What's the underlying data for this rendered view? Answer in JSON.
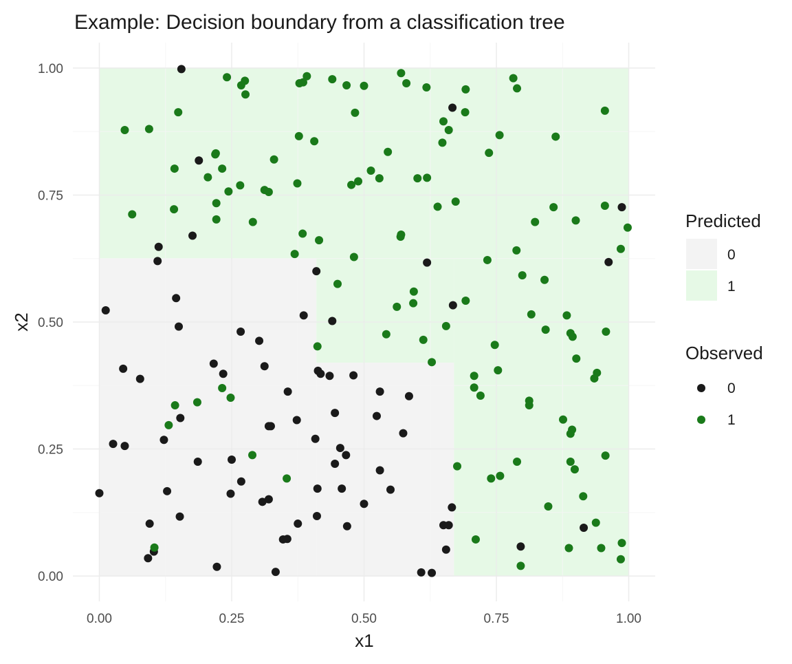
{
  "chart_data": {
    "type": "scatter",
    "title": "Example: Decision boundary from a classification tree",
    "xlabel": "x1",
    "ylabel": "x2",
    "xlim": [
      -0.05,
      1.05
    ],
    "ylim": [
      -0.05,
      1.05
    ],
    "x_ticks": [
      0,
      0.25,
      0.5,
      0.75,
      1
    ],
    "x_tick_labels": [
      "0.00",
      "0.25",
      "0.50",
      "0.75",
      "1.00"
    ],
    "y_ticks": [
      0,
      0.25,
      0.5,
      0.75,
      1
    ],
    "y_tick_labels": [
      "0.00",
      "0.25",
      "0.50",
      "0.75",
      "1.00"
    ],
    "grid": true,
    "legend_position": "right",
    "colors": {
      "predicted_0": "#f3f3f3",
      "predicted_1": "#e6f9e6",
      "observed_0": "#1a1a1a",
      "observed_1": "#1a7a1a",
      "grid_major": "#ebebeb",
      "grid_minor": "#f5f5f5",
      "text": "#1a1a1a",
      "tick_text": "#4d4d4d"
    },
    "legends": {
      "predicted": {
        "title": "Predicted",
        "labels": [
          "0",
          "1"
        ]
      },
      "observed": {
        "title": "Observed",
        "labels": [
          "0",
          "1"
        ]
      }
    },
    "regions": [
      {
        "predicted": "1",
        "x": [
          0,
          1
        ],
        "y": [
          0.625,
          1
        ]
      },
      {
        "predicted": "0",
        "x": [
          0,
          0.41
        ],
        "y": [
          0,
          0.625
        ]
      },
      {
        "predicted": "0",
        "x": [
          0.41,
          0.67
        ],
        "y": [
          0,
          0.42
        ]
      },
      {
        "predicted": "1",
        "x": [
          0.41,
          0.67
        ],
        "y": [
          0.42,
          0.625
        ]
      },
      {
        "predicted": "1",
        "x": [
          0.67,
          1
        ],
        "y": [
          0,
          0.625
        ]
      }
    ],
    "series": [
      {
        "name": "0",
        "points": [
          [
            0.155,
            0.998
          ],
          [
            0.667,
            0.922
          ],
          [
            0.188,
            0.818
          ],
          [
            0.176,
            0.67
          ],
          [
            0.112,
            0.648
          ],
          [
            0.11,
            0.62
          ],
          [
            0.987,
            0.726
          ],
          [
            0.962,
            0.618
          ],
          [
            0.619,
            0.617
          ],
          [
            0.41,
            0.6
          ],
          [
            0.145,
            0.547
          ],
          [
            0.012,
            0.523
          ],
          [
            0.668,
            0.533
          ],
          [
            0.386,
            0.513
          ],
          [
            0.44,
            0.502
          ],
          [
            0.15,
            0.491
          ],
          [
            0.267,
            0.481
          ],
          [
            0.302,
            0.463
          ],
          [
            0.216,
            0.418
          ],
          [
            0.312,
            0.413
          ],
          [
            0.045,
            0.408
          ],
          [
            0.413,
            0.404
          ],
          [
            0.418,
            0.398
          ],
          [
            0.234,
            0.398
          ],
          [
            0.435,
            0.394
          ],
          [
            0.48,
            0.395
          ],
          [
            0.077,
            0.388
          ],
          [
            0.53,
            0.363
          ],
          [
            0.356,
            0.363
          ],
          [
            0.585,
            0.354
          ],
          [
            0.445,
            0.321
          ],
          [
            0.524,
            0.315
          ],
          [
            0.153,
            0.311
          ],
          [
            0.373,
            0.307
          ],
          [
            0.32,
            0.295
          ],
          [
            0.324,
            0.295
          ],
          [
            0.574,
            0.281
          ],
          [
            0.122,
            0.268
          ],
          [
            0.408,
            0.27
          ],
          [
            0.026,
            0.26
          ],
          [
            0.048,
            0.256
          ],
          [
            0.455,
            0.252
          ],
          [
            0.466,
            0.238
          ],
          [
            0.25,
            0.229
          ],
          [
            0.186,
            0.225
          ],
          [
            0.445,
            0.221
          ],
          [
            0.53,
            0.208
          ],
          [
            0.268,
            0.186
          ],
          [
            0.412,
            0.172
          ],
          [
            0.458,
            0.172
          ],
          [
            0.55,
            0.17
          ],
          [
            0.128,
            0.167
          ],
          [
            0.0,
            0.163
          ],
          [
            0.248,
            0.162
          ],
          [
            0.32,
            0.151
          ],
          [
            0.308,
            0.146
          ],
          [
            0.5,
            0.142
          ],
          [
            0.666,
            0.135
          ],
          [
            0.152,
            0.117
          ],
          [
            0.411,
            0.118
          ],
          [
            0.375,
            0.103
          ],
          [
            0.095,
            0.103
          ],
          [
            0.468,
            0.098
          ],
          [
            0.65,
            0.1
          ],
          [
            0.66,
            0.1
          ],
          [
            0.915,
            0.095
          ],
          [
            0.347,
            0.072
          ],
          [
            0.355,
            0.073
          ],
          [
            0.796,
            0.058
          ],
          [
            0.655,
            0.052
          ],
          [
            0.103,
            0.048
          ],
          [
            0.092,
            0.035
          ],
          [
            0.222,
            0.018
          ],
          [
            0.333,
            0.008
          ],
          [
            0.608,
            0.007
          ],
          [
            0.628,
            0.006
          ]
        ]
      },
      {
        "name": "1",
        "points": [
          [
            0.57,
            0.99
          ],
          [
            0.241,
            0.982
          ],
          [
            0.392,
            0.984
          ],
          [
            0.44,
            0.978
          ],
          [
            0.275,
            0.975
          ],
          [
            0.378,
            0.97
          ],
          [
            0.58,
            0.97
          ],
          [
            0.385,
            0.972
          ],
          [
            0.268,
            0.966
          ],
          [
            0.467,
            0.966
          ],
          [
            0.5,
            0.965
          ],
          [
            0.618,
            0.962
          ],
          [
            0.692,
            0.958
          ],
          [
            0.789,
            0.96
          ],
          [
            0.782,
            0.98
          ],
          [
            0.276,
            0.948
          ],
          [
            0.149,
            0.913
          ],
          [
            0.483,
            0.912
          ],
          [
            0.691,
            0.913
          ],
          [
            0.955,
            0.916
          ],
          [
            0.65,
            0.895
          ],
          [
            0.048,
            0.878
          ],
          [
            0.094,
            0.88
          ],
          [
            0.66,
            0.878
          ],
          [
            0.377,
            0.866
          ],
          [
            0.406,
            0.856
          ],
          [
            0.648,
            0.853
          ],
          [
            0.756,
            0.868
          ],
          [
            0.862,
            0.865
          ],
          [
            0.545,
            0.835
          ],
          [
            0.219,
            0.83
          ],
          [
            0.22,
            0.832
          ],
          [
            0.736,
            0.833
          ],
          [
            0.33,
            0.82
          ],
          [
            0.142,
            0.802
          ],
          [
            0.232,
            0.802
          ],
          [
            0.513,
            0.798
          ],
          [
            0.205,
            0.785
          ],
          [
            0.529,
            0.783
          ],
          [
            0.601,
            0.783
          ],
          [
            0.619,
            0.784
          ],
          [
            0.489,
            0.777
          ],
          [
            0.374,
            0.773
          ],
          [
            0.266,
            0.769
          ],
          [
            0.476,
            0.77
          ],
          [
            0.312,
            0.76
          ],
          [
            0.32,
            0.756
          ],
          [
            0.244,
            0.757
          ],
          [
            0.221,
            0.734
          ],
          [
            0.673,
            0.737
          ],
          [
            0.639,
            0.727
          ],
          [
            0.858,
            0.726
          ],
          [
            0.955,
            0.729
          ],
          [
            0.141,
            0.722
          ],
          [
            0.062,
            0.712
          ],
          [
            0.221,
            0.702
          ],
          [
            0.29,
            0.697
          ],
          [
            0.823,
            0.697
          ],
          [
            0.9,
            0.7
          ],
          [
            0.998,
            0.686
          ],
          [
            0.384,
            0.674
          ],
          [
            0.57,
            0.672
          ],
          [
            0.569,
            0.668
          ],
          [
            0.415,
            0.661
          ],
          [
            0.985,
            0.644
          ],
          [
            0.788,
            0.641
          ],
          [
            0.369,
            0.634
          ],
          [
            0.481,
            0.628
          ],
          [
            0.733,
            0.622
          ],
          [
            0.799,
            0.592
          ],
          [
            0.841,
            0.583
          ],
          [
            0.45,
            0.575
          ],
          [
            0.594,
            0.56
          ],
          [
            0.692,
            0.542
          ],
          [
            0.593,
            0.537
          ],
          [
            0.562,
            0.53
          ],
          [
            0.816,
            0.515
          ],
          [
            0.883,
            0.513
          ],
          [
            0.655,
            0.492
          ],
          [
            0.843,
            0.485
          ],
          [
            0.957,
            0.481
          ],
          [
            0.89,
            0.478
          ],
          [
            0.894,
            0.471
          ],
          [
            0.542,
            0.476
          ],
          [
            0.612,
            0.465
          ],
          [
            0.747,
            0.455
          ],
          [
            0.412,
            0.452
          ],
          [
            0.901,
            0.428
          ],
          [
            0.628,
            0.421
          ],
          [
            0.753,
            0.405
          ],
          [
            0.94,
            0.4
          ],
          [
            0.708,
            0.394
          ],
          [
            0.935,
            0.389
          ],
          [
            0.708,
            0.371
          ],
          [
            0.232,
            0.37
          ],
          [
            0.72,
            0.355
          ],
          [
            0.248,
            0.351
          ],
          [
            0.812,
            0.345
          ],
          [
            0.185,
            0.342
          ],
          [
            0.143,
            0.336
          ],
          [
            0.812,
            0.336
          ],
          [
            0.876,
            0.308
          ],
          [
            0.131,
            0.297
          ],
          [
            0.893,
            0.288
          ],
          [
            0.89,
            0.28
          ],
          [
            0.289,
            0.238
          ],
          [
            0.956,
            0.237
          ],
          [
            0.89,
            0.225
          ],
          [
            0.789,
            0.225
          ],
          [
            0.676,
            0.216
          ],
          [
            0.898,
            0.21
          ],
          [
            0.757,
            0.197
          ],
          [
            0.74,
            0.192
          ],
          [
            0.354,
            0.192
          ],
          [
            0.914,
            0.157
          ],
          [
            0.848,
            0.137
          ],
          [
            0.938,
            0.105
          ],
          [
            0.711,
            0.072
          ],
          [
            0.987,
            0.065
          ],
          [
            0.104,
            0.056
          ],
          [
            0.887,
            0.055
          ],
          [
            0.948,
            0.055
          ],
          [
            0.985,
            0.033
          ],
          [
            0.796,
            0.02
          ]
        ]
      }
    ]
  }
}
